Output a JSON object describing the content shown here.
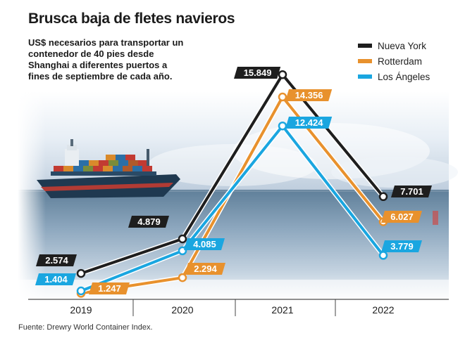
{
  "title": "Brusca baja de fletes navieros",
  "subtitle": "US$ necesarios para transportar un contenedor de 40 pies desde Shanghai a diferentes puertos a fines de septiembre de cada año.",
  "source": "Fuente: Drewry World Container Index.",
  "chart_data": {
    "type": "line",
    "title": "Brusca baja de fletes navieros",
    "categories": [
      "2019",
      "2020",
      "2021",
      "2022"
    ],
    "series": [
      {
        "name": "Nueva York",
        "color": "#1e1e1e",
        "values": [
          2574,
          4879,
          15849,
          7701
        ],
        "labels": [
          "2.574",
          "4.879",
          "15.849",
          "7.701"
        ]
      },
      {
        "name": "Rotterdam",
        "color": "#e8912d",
        "values": [
          1247,
          2294,
          14356,
          6027
        ],
        "labels": [
          "1.247",
          "2.294",
          "14.356",
          "6.027"
        ]
      },
      {
        "name": "Los Ángeles",
        "color": "#1aa6e0",
        "values": [
          1404,
          4085,
          12424,
          3779
        ],
        "labels": [
          "1.404",
          "4.085",
          "12.424",
          "3.779"
        ]
      }
    ],
    "legend_position": "top-right",
    "grid": false
  }
}
